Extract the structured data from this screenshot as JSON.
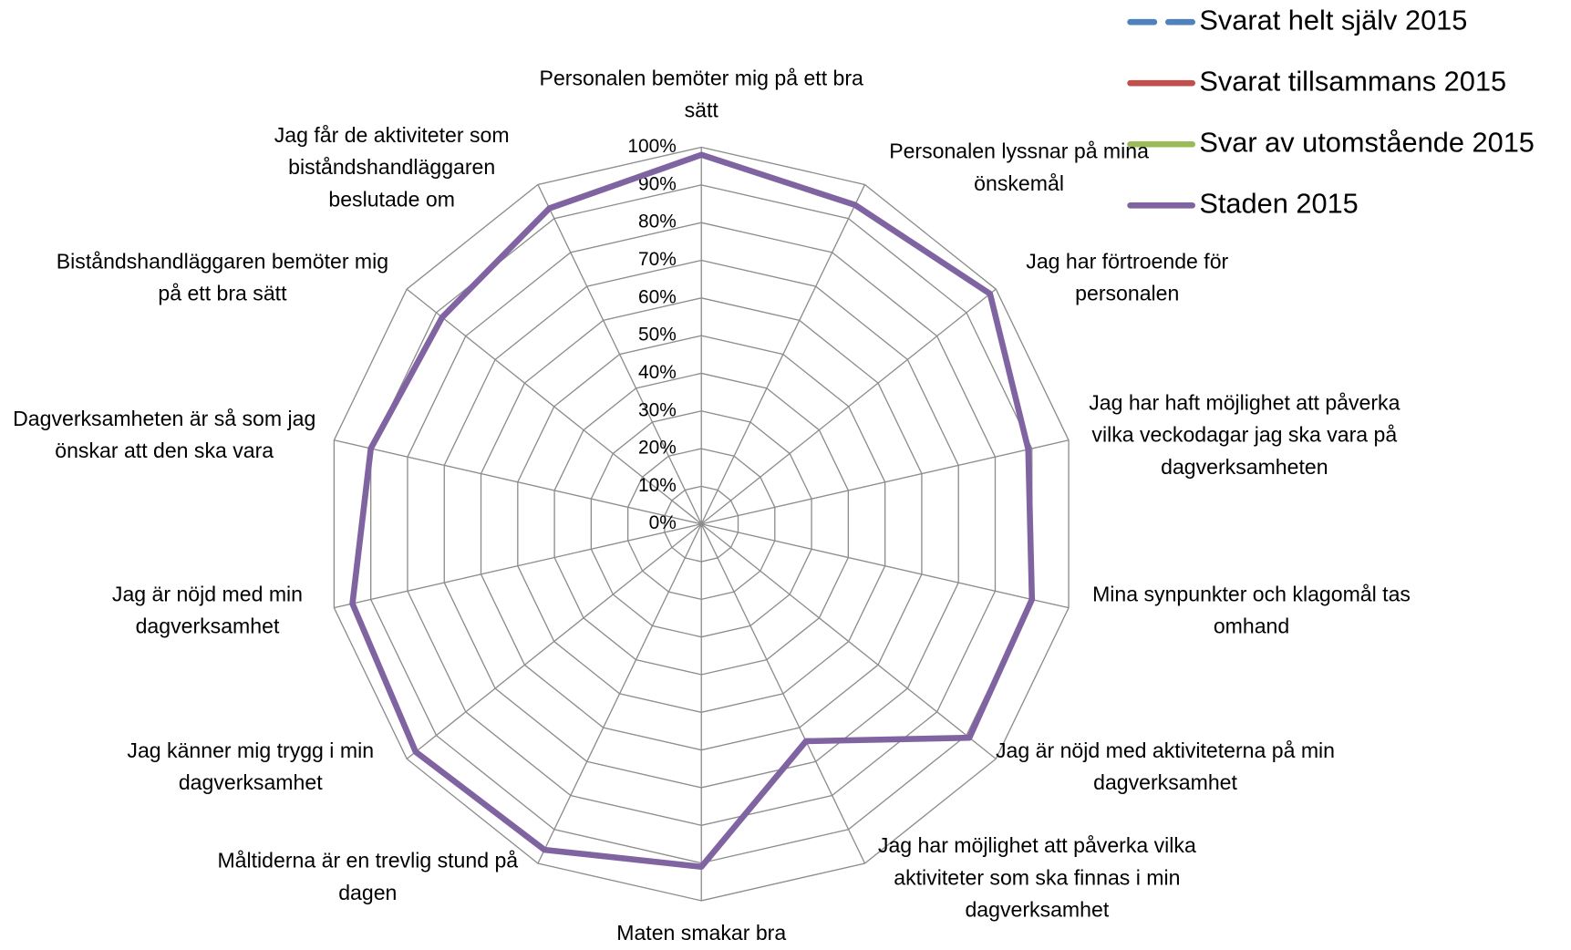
{
  "chart_data": {
    "type": "radar",
    "categories": [
      "Personalen bemöter mig på ett bra sätt",
      "Personalen lyssnar på mina önskemål",
      "Jag har förtroende för personalen",
      "Jag har haft möjlighet att påverka vilka veckodagar jag ska vara på dagverksamheten",
      "Mina synpunkter och klagomål tas omhand",
      "Jag är nöjd med aktiviteterna på min dagverksamhet",
      "Jag har möjlighet att påverka vilka aktiviteter som ska finnas i min dagverksamhet",
      "Maten smakar bra",
      "Måltiderna är en trevlig stund på dagen",
      "Jag känner mig trygg i min dagverksamhet",
      "Jag är nöjd med min dagverksamhet",
      "Dagverksamheten är så som jag önskar att den ska vara",
      "Biståndshandläggaren bemöter mig på ett bra sätt",
      "Jag får de aktiviteter som biståndshandläggaren beslutade om"
    ],
    "series": [
      {
        "name": "Svarat helt själv 2015",
        "color": "#4f81bd",
        "dashed": true,
        "values": [
          null,
          null,
          null,
          null,
          null,
          null,
          null,
          null,
          null,
          null,
          null,
          null,
          null,
          null
        ]
      },
      {
        "name": "Svarat tillsammans 2015",
        "color": "#c0504d",
        "values": [
          null,
          null,
          null,
          null,
          null,
          null,
          null,
          null,
          null,
          null,
          null,
          null,
          null,
          null
        ]
      },
      {
        "name": "Svar av utomstående 2015",
        "color": "#9bbb59",
        "values": [
          null,
          null,
          null,
          null,
          null,
          null,
          null,
          null,
          null,
          null,
          null,
          null,
          null,
          null
        ]
      },
      {
        "name": "Staden 2015",
        "color": "#8064a2",
        "values": [
          98,
          94,
          98,
          89,
          90,
          91,
          64,
          91,
          96,
          97,
          95,
          90,
          88,
          93
        ]
      }
    ],
    "ylim": [
      0,
      100
    ],
    "yticks": [
      {
        "value": 0,
        "label": "0%"
      },
      {
        "value": 10,
        "label": "10%"
      },
      {
        "value": 20,
        "label": "20%"
      },
      {
        "value": 30,
        "label": "30%"
      },
      {
        "value": 40,
        "label": "40%"
      },
      {
        "value": 50,
        "label": "50%"
      },
      {
        "value": 60,
        "label": "60%"
      },
      {
        "value": 70,
        "label": "70%"
      },
      {
        "value": 80,
        "label": "80%"
      },
      {
        "value": 90,
        "label": "90%"
      },
      {
        "value": 100,
        "label": "100%"
      }
    ],
    "grid": true,
    "legend": "top-right"
  }
}
